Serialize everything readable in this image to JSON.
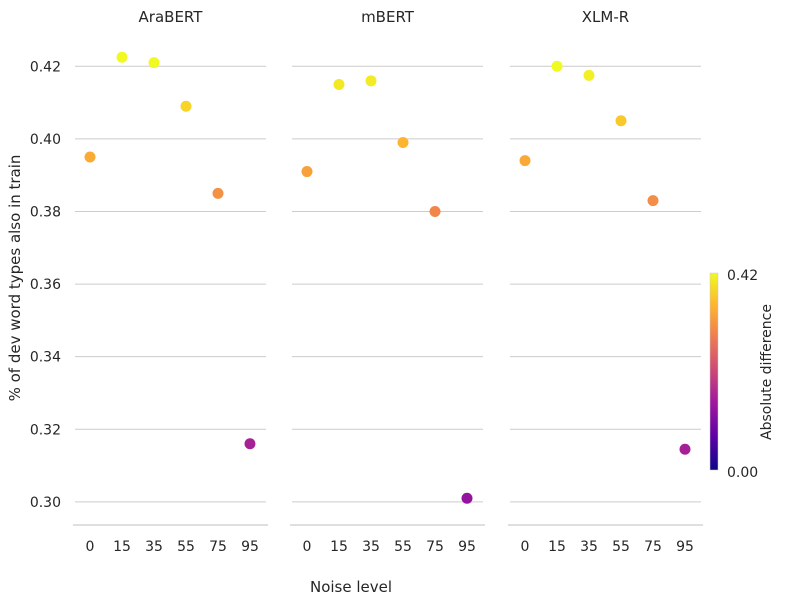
{
  "chart_data": {
    "type": "scatter",
    "ylabel": "% of dev word types also in train",
    "xlabel": "Noise level",
    "categories": [
      "0",
      "15",
      "35",
      "55",
      "75",
      "95"
    ],
    "ylim": [
      0.295,
      0.43
    ],
    "yticks": [
      0.3,
      0.32,
      0.34,
      0.36,
      0.38,
      0.4,
      0.42
    ],
    "grid": "horizontal",
    "panels": [
      {
        "title": "AraBERT",
        "values": [
          0.395,
          0.4225,
          0.421,
          0.409,
          0.385,
          0.316
        ]
      },
      {
        "title": "mBERT",
        "values": [
          0.391,
          0.415,
          0.416,
          0.399,
          0.38,
          0.301
        ]
      },
      {
        "title": "XLM-R",
        "values": [
          0.394,
          0.42,
          0.4175,
          0.405,
          0.383,
          0.3145
        ]
      }
    ],
    "colorbar": {
      "label": "Absolute  difference",
      "min": 0.0,
      "max": 0.42,
      "min_label": "0.00",
      "max_label": "0.42",
      "colormap": "plasma",
      "colors": [
        "#0d0887",
        "#5c01a6",
        "#9c179e",
        "#cc4778",
        "#ed7953",
        "#fdb42f",
        "#f0f921"
      ]
    }
  }
}
